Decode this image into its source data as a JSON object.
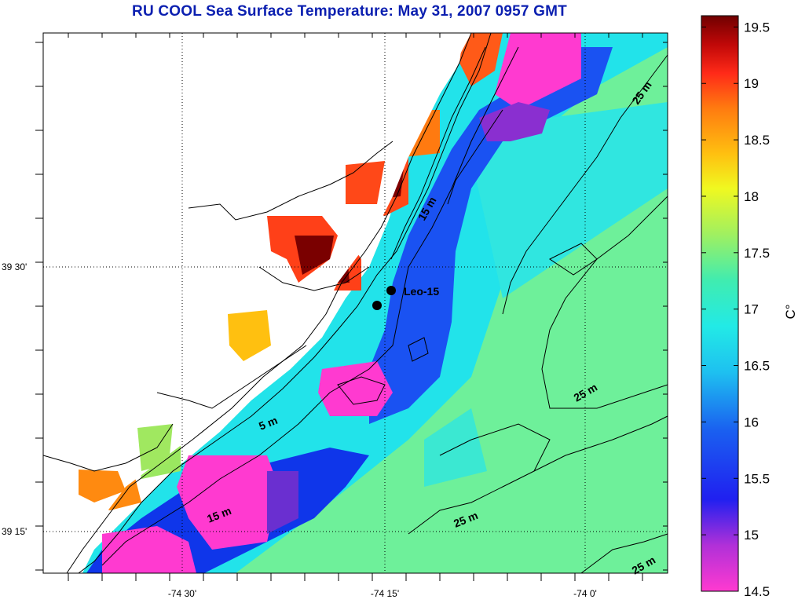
{
  "title": "RU COOL  Sea Surface Temperature:  May 31, 2007 0957 GMT",
  "map": {
    "x_ticks": [
      {
        "label": "-74 30'"
      },
      {
        "label": "-74 15'"
      },
      {
        "label": "-74 0'"
      }
    ],
    "y_ticks": [
      {
        "label": "39 30'"
      },
      {
        "label": "39 15'"
      }
    ],
    "station_label": "Leo-15",
    "isobath_labels": [
      "5 m",
      "15 m",
      "15 m",
      "25 m",
      "25 m",
      "25 m",
      "25 m"
    ]
  },
  "colorbar": {
    "min": 14.5,
    "max": 19.6,
    "unit_label": "C°",
    "ticks": [
      "14.5",
      "15",
      "15.5",
      "16",
      "16.5",
      "17",
      "17.5",
      "18",
      "18.5",
      "19",
      "19.5"
    ],
    "colors": [
      "#ff3ad0",
      "#7a2fd0",
      "#0a16f0",
      "#1a7ff0",
      "#22e8ea",
      "#70ee80",
      "#ffff20",
      "#ff9a10",
      "#ff3318",
      "#7a0000"
    ]
  }
}
